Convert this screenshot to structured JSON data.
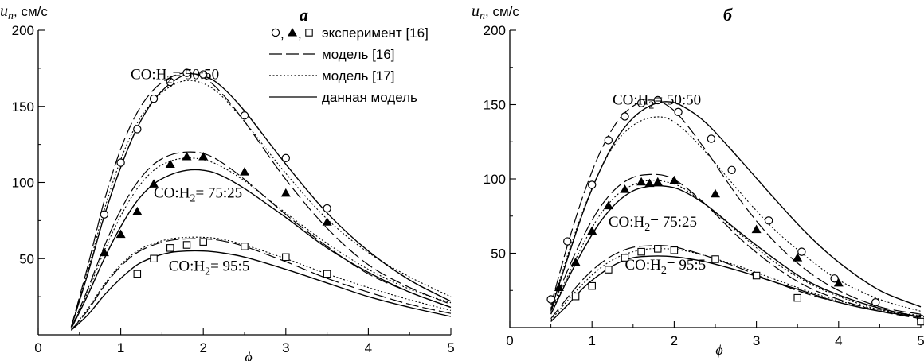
{
  "chart_data": [
    {
      "type": "line",
      "panel_label": "а",
      "ylabel_var": "u",
      "ylabel_sub": "n",
      "ylabel_unit": ", см/с",
      "xlabel": "ϕ",
      "xlim": [
        0,
        5
      ],
      "ylim": [
        0,
        200
      ],
      "xticks": [
        0,
        1,
        2,
        3,
        4,
        5
      ],
      "yticks": [
        50,
        100,
        150,
        200
      ],
      "grid": false,
      "legend": {
        "placement": "top-right",
        "entries": [
          {
            "kind": "markers",
            "label": "эксперимент [16]"
          },
          {
            "kind": "dashed",
            "label": "модель [16]"
          },
          {
            "kind": "dotted",
            "label": "модель [17]"
          },
          {
            "kind": "solid",
            "label": "данная модель"
          }
        ]
      },
      "annotations": [
        {
          "text_pre": "CO:H",
          "text_sub": "2",
          "text_post": "= 50:50",
          "x": 1.12,
          "y": 168
        },
        {
          "text_pre": "CO:H",
          "text_sub": "2",
          "text_post": "= 75:25",
          "x": 1.4,
          "y": 90
        },
        {
          "text_pre": "CO:H",
          "text_sub": "2",
          "text_post": "= 95:5",
          "x": 1.58,
          "y": 42
        }
      ],
      "groups": [
        {
          "marker": "circle",
          "experiment": {
            "x": [
              0.8,
              1.0,
              1.2,
              1.4,
              1.6,
              1.8,
              2.0,
              2.5,
              3.0,
              3.5
            ],
            "y": [
              79,
              113,
              135,
              155,
              166,
              172,
              171,
              144,
              116,
              83
            ]
          },
          "model_16": {
            "x": [
              0.4,
              0.6,
              0.8,
              1.0,
              1.2,
              1.4,
              1.6,
              1.8,
              2.0,
              2.2,
              2.5,
              3.0,
              3.5,
              4.0,
              4.5,
              5.0
            ],
            "y": [
              5,
              45,
              88,
              122,
              146,
              161,
              169,
              172,
              169,
              160,
              140,
              102,
              70,
              46,
              31,
              20
            ]
          },
          "model_17": {
            "x": [
              0.4,
              0.6,
              0.8,
              1.0,
              1.2,
              1.4,
              1.6,
              1.8,
              2.0,
              2.2,
              2.5,
              3.0,
              3.5,
              4.0,
              4.5,
              5.0
            ],
            "y": [
              5,
              42,
              82,
              115,
              139,
              154,
              163,
              167,
              165,
              158,
              140,
              106,
              76,
              54,
              38,
              25
            ]
          },
          "this_model": {
            "x": [
              0.4,
              0.6,
              0.8,
              1.0,
              1.2,
              1.4,
              1.6,
              1.8,
              2.0,
              2.2,
              2.5,
              3.0,
              3.5,
              4.0,
              4.5,
              5.0
            ],
            "y": [
              5,
              40,
              78,
              110,
              136,
              154,
              165,
              171,
              170,
              164,
              147,
              112,
              80,
              55,
              36,
              22
            ]
          }
        },
        {
          "marker": "triangle",
          "experiment": {
            "x": [
              0.8,
              1.0,
              1.2,
              1.4,
              1.6,
              1.8,
              2.0,
              2.5,
              3.0,
              3.5
            ],
            "y": [
              54,
              66,
              81,
              99,
              112,
              117,
              117,
              107,
              93,
              74
            ]
          },
          "model_16": {
            "x": [
              0.4,
              0.6,
              0.8,
              1.0,
              1.2,
              1.4,
              1.6,
              1.8,
              2.0,
              2.2,
              2.5,
              3.0,
              3.5,
              4.0,
              4.5,
              5.0
            ],
            "y": [
              4,
              30,
              58,
              82,
              100,
              112,
              118,
              120,
              119,
              114,
              102,
              79,
              58,
              40,
              28,
              18
            ]
          },
          "model_17": {
            "x": [
              0.4,
              0.6,
              0.8,
              1.0,
              1.2,
              1.4,
              1.6,
              1.8,
              2.0,
              2.2,
              2.5,
              3.0,
              3.5,
              4.0,
              4.5,
              5.0
            ],
            "y": [
              4,
              28,
              55,
              78,
              96,
              108,
              114,
              116,
              115,
              111,
              101,
              80,
              60,
              43,
              30,
              21
            ]
          },
          "this_model": {
            "x": [
              0.4,
              0.6,
              0.8,
              1.0,
              1.2,
              1.4,
              1.6,
              1.8,
              2.0,
              2.2,
              2.5,
              3.0,
              3.5,
              4.0,
              4.5,
              5.0
            ],
            "y": [
              4,
              26,
              50,
              71,
              88,
              99,
              105,
              108,
              108,
              105,
              96,
              77,
              57,
              41,
              28,
              18
            ]
          }
        },
        {
          "marker": "square",
          "experiment": {
            "x": [
              1.2,
              1.4,
              1.6,
              1.8,
              2.0,
              2.5,
              3.0,
              3.5
            ],
            "y": [
              40,
              50,
              57,
              59,
              61,
              58,
              51,
              40
            ]
          },
          "model_16": {
            "x": [
              0.4,
              0.6,
              0.8,
              1.0,
              1.2,
              1.4,
              1.6,
              1.8,
              2.0,
              2.2,
              2.5,
              3.0,
              3.5,
              4.0,
              4.5,
              5.0
            ],
            "y": [
              3,
              16,
              32,
              45,
              54,
              59,
              62,
              63,
              63,
              62,
              58,
              48,
              37,
              28,
              20,
              14
            ]
          },
          "model_17": {
            "x": [
              0.4,
              0.6,
              0.8,
              1.0,
              1.2,
              1.4,
              1.6,
              1.8,
              2.0,
              2.2,
              2.5,
              3.0,
              3.5,
              4.0,
              4.5,
              5.0
            ],
            "y": [
              3,
              17,
              33,
              46,
              55,
              60,
              63,
              64,
              64,
              63,
              59,
              50,
              40,
              31,
              23,
              16
            ]
          },
          "this_model": {
            "x": [
              0.4,
              0.6,
              0.8,
              1.0,
              1.2,
              1.4,
              1.6,
              1.8,
              2.0,
              2.2,
              2.5,
              3.0,
              3.5,
              4.0,
              4.5,
              5.0
            ],
            "y": [
              3,
              13,
              26,
              37,
              46,
              51,
              54,
              55,
              55,
              54,
              51,
              43,
              34,
              25,
              18,
              12
            ]
          }
        }
      ]
    },
    {
      "type": "line",
      "panel_label": "б",
      "ylabel_var": "u",
      "ylabel_sub": "n",
      "ylabel_unit": ", см/с",
      "xlabel": "ϕ",
      "xlim": [
        0,
        5
      ],
      "ylim": [
        0,
        200
      ],
      "xticks": [
        0,
        1,
        2,
        3,
        4,
        5
      ],
      "yticks": [
        50,
        100,
        150,
        200
      ],
      "grid": false,
      "annotations": [
        {
          "text_pre": "CO:H",
          "text_sub": "2",
          "text_post": "= 50:50",
          "x": 1.25,
          "y": 150
        },
        {
          "text_pre": "CO:H",
          "text_sub": "2",
          "text_post": "= 75:25",
          "x": 1.2,
          "y": 68
        },
        {
          "text_pre": "CO:H",
          "text_sub": "2",
          "text_post": "= 95:5",
          "x": 1.4,
          "y": 39
        }
      ],
      "groups": [
        {
          "marker": "circle",
          "experiment": {
            "x": [
              0.5,
              0.7,
              1.0,
              1.2,
              1.4,
              1.6,
              1.8,
              2.05,
              2.45,
              2.7,
              3.15,
              3.55,
              3.95,
              4.45,
              5.0
            ],
            "y": [
              19,
              58,
              96,
              126,
              142,
              151,
              153,
              145,
              127,
              106,
              72,
              51,
              33,
              17,
              6
            ]
          },
          "model_16": {
            "x": [
              0.5,
              0.7,
              0.9,
              1.1,
              1.3,
              1.5,
              1.7,
              1.9,
              2.1,
              2.4,
              2.8,
              3.2,
              3.6,
              4.0,
              4.5,
              5.0
            ],
            "y": [
              15,
              55,
              90,
              118,
              138,
              149,
              153,
              150,
              140,
              118,
              86,
              59,
              39,
              25,
              14,
              9
            ]
          },
          "model_17": {
            "x": [
              0.5,
              0.7,
              0.9,
              1.1,
              1.3,
              1.5,
              1.7,
              1.9,
              2.1,
              2.4,
              2.8,
              3.2,
              3.6,
              4.0,
              4.5,
              5.0
            ],
            "y": [
              13,
              48,
              80,
              106,
              125,
              136,
              141,
              141,
              134,
              117,
              91,
              67,
              48,
              32,
              19,
              11
            ]
          },
          "this_model": {
            "x": [
              0.5,
              0.7,
              0.9,
              1.1,
              1.3,
              1.5,
              1.7,
              1.9,
              2.1,
              2.4,
              2.8,
              3.2,
              3.6,
              4.0,
              4.5,
              5.0
            ],
            "y": [
              12,
              46,
              79,
              106,
              127,
              141,
              149,
              152,
              149,
              137,
              113,
              88,
              64,
              44,
              25,
              14
            ]
          }
        },
        {
          "marker": "triangle",
          "experiment": {
            "x": [
              0.6,
              0.8,
              1.0,
              1.2,
              1.4,
              1.6,
              1.7,
              1.8,
              2.0,
              2.5,
              3.0,
              3.5,
              4.0
            ],
            "y": [
              27,
              44,
              65,
              82,
              93,
              98,
              97,
              98,
              99,
              90,
              66,
              47,
              30
            ]
          },
          "model_16": {
            "x": [
              0.5,
              0.7,
              0.9,
              1.1,
              1.3,
              1.5,
              1.7,
              1.9,
              2.1,
              2.4,
              2.8,
              3.2,
              3.6,
              4.0,
              4.5,
              5.0
            ],
            "y": [
              11,
              38,
              62,
              81,
              94,
              101,
              103,
              102,
              96,
              82,
              60,
              42,
              28,
              19,
              11,
              6
            ]
          },
          "model_17": {
            "x": [
              0.5,
              0.7,
              0.9,
              1.1,
              1.3,
              1.5,
              1.7,
              1.9,
              2.1,
              2.4,
              2.8,
              3.2,
              3.6,
              4.0,
              4.5,
              5.0
            ],
            "y": [
              10,
              34,
              57,
              76,
              89,
              96,
              99,
              98,
              94,
              82,
              63,
              45,
              31,
              21,
              12,
              7
            ]
          },
          "this_model": {
            "x": [
              0.5,
              0.7,
              0.9,
              1.1,
              1.3,
              1.5,
              1.7,
              1.9,
              2.1,
              2.4,
              2.8,
              3.2,
              3.6,
              4.0,
              4.5,
              5.0
            ],
            "y": [
              9,
              32,
              53,
              71,
              84,
              92,
              95,
              95,
              92,
              82,
              64,
              47,
              32,
              22,
              13,
              7
            ]
          }
        },
        {
          "marker": "square",
          "experiment": {
            "x": [
              0.8,
              1.0,
              1.2,
              1.4,
              1.6,
              1.8,
              2.0,
              2.5,
              3.0,
              3.5,
              5.0
            ],
            "y": [
              21,
              28,
              39,
              47,
              51,
              53,
              52,
              46,
              35,
              20,
              4
            ]
          },
          "model_16": {
            "x": [
              0.5,
              0.7,
              0.9,
              1.1,
              1.3,
              1.5,
              1.7,
              1.9,
              2.1,
              2.4,
              2.8,
              3.2,
              3.6,
              4.0,
              4.5,
              5.0
            ],
            "y": [
              6,
              20,
              33,
              43,
              50,
              54,
              55,
              55,
              53,
              48,
              40,
              31,
              23,
              17,
              11,
              7
            ]
          },
          "model_17": {
            "x": [
              0.5,
              0.7,
              0.9,
              1.1,
              1.3,
              1.5,
              1.7,
              1.9,
              2.1,
              2.4,
              2.8,
              3.2,
              3.6,
              4.0,
              4.5,
              5.0
            ],
            "y": [
              5,
              18,
              30,
              40,
              47,
              51,
              53,
              53,
              52,
              48,
              41,
              33,
              25,
              18,
              12,
              8
            ]
          },
          "this_model": {
            "x": [
              0.5,
              0.7,
              0.9,
              1.1,
              1.3,
              1.5,
              1.7,
              1.9,
              2.1,
              2.4,
              2.8,
              3.2,
              3.6,
              4.0,
              4.5,
              5.0
            ],
            "y": [
              4,
              15,
              27,
              36,
              43,
              47,
              48,
              48,
              47,
              44,
              38,
              31,
              24,
              17,
              11,
              7
            ]
          }
        }
      ]
    }
  ]
}
